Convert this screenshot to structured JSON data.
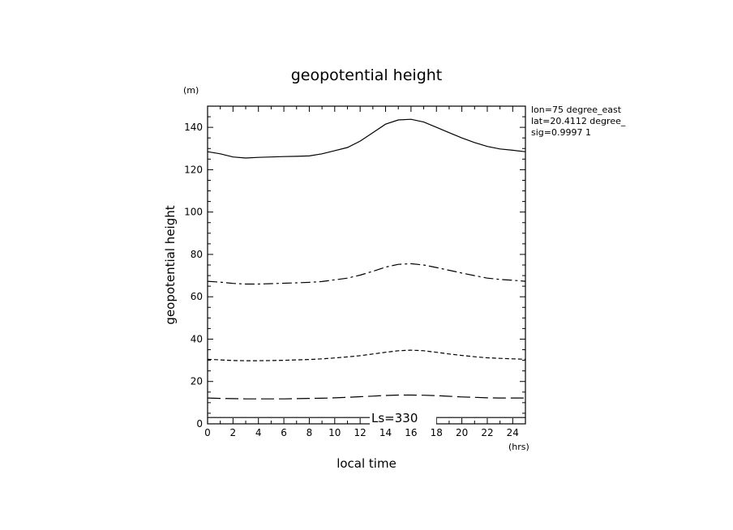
{
  "chart_data": {
    "type": "line",
    "title": "geopotential height",
    "xlabel": "local time",
    "ylabel": "geopotential height",
    "x_unit": "(hrs)",
    "y_unit": "(m)",
    "xlim": [
      0,
      25
    ],
    "ylim": [
      0,
      150
    ],
    "x_ticks": [
      0,
      2,
      4,
      6,
      8,
      10,
      12,
      14,
      16,
      18,
      20,
      22,
      24
    ],
    "y_ticks": [
      0,
      20,
      40,
      60,
      80,
      100,
      120,
      140
    ],
    "info": [
      "lon=75 degree_east",
      "lat=20.4112 degree_",
      "sig=0.9997 1"
    ],
    "annotation": "Ls=330",
    "series": [
      {
        "style": "solid",
        "x": [
          0,
          1,
          2,
          3,
          4,
          5,
          6,
          7,
          8,
          9,
          10,
          11,
          12,
          13,
          14,
          15,
          16,
          17,
          18,
          19,
          20,
          21,
          22,
          23,
          24,
          25
        ],
        "y": [
          128.5,
          127.5,
          126,
          125.5,
          125.8,
          126,
          126.2,
          126.3,
          126.5,
          127.5,
          129,
          130.5,
          133.5,
          137.5,
          141.5,
          143.5,
          143.8,
          142.5,
          140,
          137.5,
          135,
          132.8,
          131,
          129.8,
          129.2,
          128.5
        ]
      },
      {
        "style": "dash-dot",
        "x": [
          0,
          1,
          2,
          3,
          4,
          5,
          6,
          7,
          8,
          9,
          10,
          11,
          12,
          13,
          14,
          15,
          16,
          17,
          18,
          19,
          20,
          21,
          22,
          23,
          24,
          25
        ],
        "y": [
          67.3,
          66.9,
          66.3,
          66,
          66,
          66.2,
          66.4,
          66.6,
          66.8,
          67.2,
          68,
          68.8,
          70.2,
          72,
          74,
          75.3,
          75.6,
          75,
          73.8,
          72.5,
          71.2,
          70,
          68.8,
          68.2,
          67.8,
          67.3
        ]
      },
      {
        "style": "short-dash",
        "x": [
          0,
          1,
          2,
          3,
          4,
          5,
          6,
          7,
          8,
          9,
          10,
          11,
          12,
          13,
          14,
          15,
          16,
          17,
          18,
          19,
          20,
          21,
          22,
          23,
          24,
          25
        ],
        "y": [
          30.5,
          30.2,
          29.9,
          29.8,
          29.8,
          29.9,
          30,
          30.2,
          30.4,
          30.7,
          31.1,
          31.6,
          32.2,
          33,
          33.8,
          34.5,
          34.8,
          34.5,
          33.8,
          33,
          32.3,
          31.7,
          31.2,
          30.9,
          30.7,
          30.5
        ]
      },
      {
        "style": "long-dash",
        "x": [
          0,
          1,
          2,
          3,
          4,
          5,
          6,
          7,
          8,
          9,
          10,
          11,
          12,
          13,
          14,
          15,
          16,
          17,
          18,
          19,
          20,
          21,
          22,
          23,
          24,
          25
        ],
        "y": [
          12.2,
          12,
          11.9,
          11.8,
          11.8,
          11.8,
          11.8,
          11.9,
          12,
          12.1,
          12.3,
          12.5,
          12.8,
          13.1,
          13.4,
          13.6,
          13.6,
          13.5,
          13.3,
          13,
          12.7,
          12.5,
          12.3,
          12.2,
          12.2,
          12.2
        ]
      },
      {
        "style": "solid",
        "x": [
          0,
          25
        ],
        "y": [
          3,
          3
        ]
      }
    ]
  }
}
